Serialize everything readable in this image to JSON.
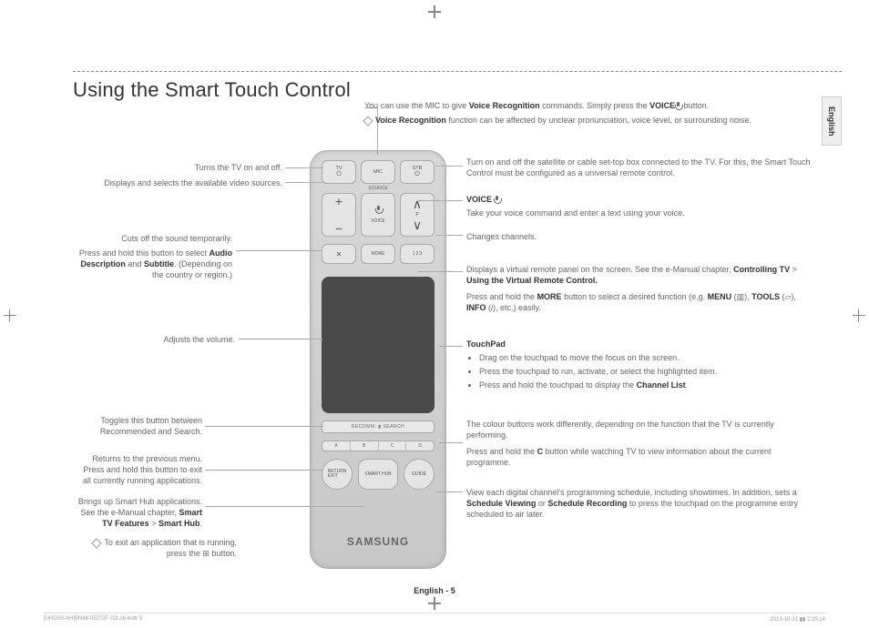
{
  "title": "Using the Smart Touch Control",
  "side_tab": "English",
  "page_number": "English - 5",
  "print_info_left": "[UHDS9-XH]BN68-05272F-02L16.indb   5",
  "print_info_right": "2013-10-31   ▮▮ 2:25:14",
  "remote": {
    "btn_tv": "TV",
    "btn_mic": "MIC",
    "btn_stb": "STB",
    "btn_source": "SOURCE",
    "btn_voice": "VOICE",
    "btn_more": "MORE",
    "btn_p": "P",
    "plus": "+",
    "minus": "−",
    "mute": "✕",
    "num": "1 2 3",
    "recomm": "RECOMM. ▮ SEARCH",
    "color_a": "A",
    "color_b": "B",
    "color_c": "C",
    "color_d": "D",
    "btn_return": "RETURN\nEXIT",
    "btn_hub": "SMART HUB",
    "btn_guide": "GUIDE",
    "brand": "SAMSUNG"
  },
  "calls": {
    "mic_1": "You can use the MIC to give <b>Voice Recognition</b> commands. Simply press the <b>VOICE</b>",
    "mic_1b": " button.",
    "mic_2": "<b>Voice Recognition</b> function can be affected by unclear pronunciation, voice level, or surrounding noise.",
    "tv": "Turns the TV on and off.",
    "source": "Displays and selects the available video sources.",
    "mute": "Cuts off the sound temporarily.",
    "mute2": "Press and hold this button to select <b>Audio Description</b> and <b>Subtitle</b>. (Depending on the country or region.)",
    "vol": "Adjusts the volume.",
    "recomm": "Toggles this button between Recommended and Search.",
    "return": "Returns to the previous menu. Press and hold this button to exit all currently running applications.",
    "hub": "Brings up Smart Hub applications. See the e-Manual chapter, <b>Smart TV Features</b> > <b>Smart Hub</b>.",
    "hub2": "To exit an application that is running, press the ⊞ button.",
    "stb": "Turn on and off the satellite or cable set-top box connected to the TV. For this, the Smart Touch Control must be configured as a universal remote control.",
    "voice_hd": "VOICE",
    "voice": "Take your voice command and enter a text using your voice.",
    "p": "Changes channels.",
    "more1": "Displays a virtual remote panel on the screen. See the e-Manual chapter, <b>Controlling TV</b> > <b>Using the Virtual Remote Control.</b>",
    "more2": "Press and hold the <b>MORE</b> button to select a desired function (e.g. <b>MENU</b> (▥), <b>TOOLS</b> (▱), <b>INFO</b> (<i>i</i>), etc.) easily.",
    "touch_hd": "TouchPad",
    "touch_b1": "Drag on the touchpad to move the focus on the screen.",
    "touch_b2": "Press the touchpad to run, activate, or select the highlighted item.",
    "touch_b3": "Press and hold the touchpad to display the <b>Channel List</b>.",
    "color1": "The colour buttons work differently, depending on the function that the TV is currently performing.",
    "color2": "Press and hold the <b>C</b> button while watching TV to view information about the current programme.",
    "guide": "View each digital channel's programming schedule, including showtimes. In addition, sets a <b>Schedule Viewing</b> or <b>Schedule Recording</b> to press the touchpad on the programme entry scheduled to air later."
  }
}
